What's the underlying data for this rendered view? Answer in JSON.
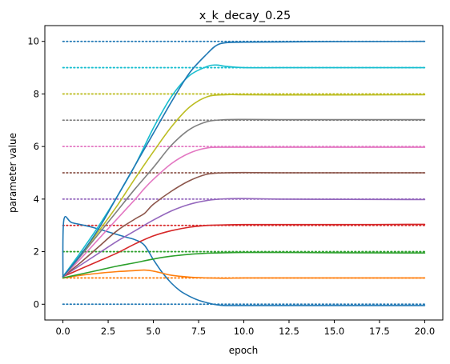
{
  "chart_data": {
    "type": "line",
    "title": "x_k_decay_0.25",
    "xlabel": "epoch",
    "ylabel": "parameter value",
    "xlim": [
      -1.0,
      21.0
    ],
    "ylim": [
      -0.6,
      10.6
    ],
    "xticks": [
      0.0,
      2.5,
      5.0,
      7.5,
      10.0,
      12.5,
      15.0,
      17.5,
      20.0
    ],
    "xtick_labels": [
      "0.0",
      "2.5",
      "5.0",
      "7.5",
      "10.0",
      "12.5",
      "15.0",
      "17.5",
      "20.0"
    ],
    "yticks": [
      0,
      2,
      4,
      6,
      8,
      10
    ],
    "ytick_labels": [
      "0",
      "2",
      "4",
      "6",
      "8",
      "10"
    ],
    "grid": false,
    "reference_lines": [
      {
        "y": 0,
        "color": "#1f77b4",
        "style": "dotted"
      },
      {
        "y": 1,
        "color": "#ff7f0e",
        "style": "dotted"
      },
      {
        "y": 2,
        "color": "#2ca02c",
        "style": "dotted"
      },
      {
        "y": 3,
        "color": "#d62728",
        "style": "dotted"
      },
      {
        "y": 4,
        "color": "#9467bd",
        "style": "dotted"
      },
      {
        "y": 5,
        "color": "#8c564b",
        "style": "dotted"
      },
      {
        "y": 6,
        "color": "#e377c2",
        "style": "dotted"
      },
      {
        "y": 7,
        "color": "#7f7f7f",
        "style": "dotted"
      },
      {
        "y": 8,
        "color": "#bcbd22",
        "style": "dotted"
      },
      {
        "y": 9,
        "color": "#17becf",
        "style": "dotted"
      },
      {
        "y": 10,
        "color": "#1f77b4",
        "style": "dotted"
      }
    ],
    "series": [
      {
        "color": "#1f77b4",
        "points": [
          [
            0,
            1.05
          ],
          [
            0.05,
            3.2
          ],
          [
            0.5,
            3.1
          ],
          [
            1.5,
            2.95
          ],
          [
            2.5,
            2.75
          ],
          [
            3.5,
            2.55
          ],
          [
            4,
            2.45
          ],
          [
            4.5,
            2.25
          ],
          [
            5,
            1.7
          ],
          [
            5.5,
            1.2
          ],
          [
            6,
            0.8
          ],
          [
            6.5,
            0.5
          ],
          [
            7,
            0.3
          ],
          [
            7.5,
            0.15
          ],
          [
            8,
            0.05
          ],
          [
            8.5,
            -0.02
          ],
          [
            9,
            -0.05
          ],
          [
            10,
            -0.05
          ],
          [
            12,
            -0.05
          ],
          [
            15,
            -0.05
          ],
          [
            20,
            -0.05
          ]
        ]
      },
      {
        "color": "#ff7f0e",
        "points": [
          [
            0,
            1.0
          ],
          [
            1,
            1.1
          ],
          [
            2,
            1.18
          ],
          [
            3,
            1.24
          ],
          [
            4,
            1.28
          ],
          [
            4.5,
            1.3
          ],
          [
            5,
            1.26
          ],
          [
            5.5,
            1.18
          ],
          [
            6,
            1.1
          ],
          [
            7,
            1.03
          ],
          [
            8,
            1.0
          ],
          [
            9,
            0.99
          ],
          [
            10,
            1.0
          ],
          [
            12,
            1.0
          ],
          [
            15,
            1.0
          ],
          [
            20,
            1.0
          ]
        ]
      },
      {
        "color": "#2ca02c",
        "points": [
          [
            0,
            1.0
          ],
          [
            1,
            1.15
          ],
          [
            2,
            1.3
          ],
          [
            3,
            1.45
          ],
          [
            4,
            1.58
          ],
          [
            5,
            1.72
          ],
          [
            6,
            1.83
          ],
          [
            7,
            1.9
          ],
          [
            8,
            1.94
          ],
          [
            9,
            1.96
          ],
          [
            10,
            1.97
          ],
          [
            12,
            1.97
          ],
          [
            15,
            1.96
          ],
          [
            20,
            1.95
          ]
        ]
      },
      {
        "color": "#d62728",
        "points": [
          [
            0,
            1.05
          ],
          [
            1,
            1.35
          ],
          [
            2,
            1.65
          ],
          [
            3,
            1.95
          ],
          [
            4,
            2.3
          ],
          [
            5,
            2.6
          ],
          [
            6,
            2.8
          ],
          [
            7,
            2.93
          ],
          [
            8,
            3.0
          ],
          [
            9,
            3.02
          ],
          [
            10,
            3.03
          ],
          [
            12,
            3.03
          ],
          [
            15,
            3.03
          ],
          [
            20,
            3.04
          ]
        ]
      },
      {
        "color": "#9467bd",
        "points": [
          [
            0,
            1.05
          ],
          [
            1,
            1.5
          ],
          [
            2,
            1.95
          ],
          [
            3,
            2.4
          ],
          [
            4,
            2.8
          ],
          [
            5,
            3.2
          ],
          [
            6,
            3.55
          ],
          [
            7,
            3.8
          ],
          [
            8,
            3.95
          ],
          [
            9,
            4.01
          ],
          [
            10,
            4.02
          ],
          [
            12,
            4.0
          ],
          [
            15,
            3.99
          ],
          [
            20,
            3.98
          ]
        ]
      },
      {
        "color": "#8c564b",
        "points": [
          [
            0,
            1.05
          ],
          [
            1,
            1.6
          ],
          [
            2,
            2.2
          ],
          [
            3,
            2.8
          ],
          [
            4,
            3.25
          ],
          [
            4.5,
            3.45
          ],
          [
            5,
            3.8
          ],
          [
            6,
            4.3
          ],
          [
            7,
            4.7
          ],
          [
            8,
            4.95
          ],
          [
            9,
            5.0
          ],
          [
            10,
            5.01
          ],
          [
            12,
            5.0
          ],
          [
            15,
            5.0
          ],
          [
            20,
            5.0
          ]
        ]
      },
      {
        "color": "#e377c2",
        "points": [
          [
            0,
            1.05
          ],
          [
            1,
            1.75
          ],
          [
            2,
            2.5
          ],
          [
            3,
            3.25
          ],
          [
            4,
            4.0
          ],
          [
            4.5,
            4.4
          ],
          [
            5,
            4.75
          ],
          [
            6,
            5.35
          ],
          [
            7,
            5.75
          ],
          [
            8,
            5.95
          ],
          [
            9,
            5.97
          ],
          [
            10,
            5.97
          ],
          [
            12,
            5.97
          ],
          [
            15,
            5.97
          ],
          [
            20,
            5.97
          ]
        ]
      },
      {
        "color": "#7f7f7f",
        "points": [
          [
            0,
            1.05
          ],
          [
            1,
            1.85
          ],
          [
            2,
            2.7
          ],
          [
            3,
            3.55
          ],
          [
            4,
            4.4
          ],
          [
            5,
            5.2
          ],
          [
            6,
            6.05
          ],
          [
            7,
            6.65
          ],
          [
            8,
            6.95
          ],
          [
            9,
            7.02
          ],
          [
            10,
            7.03
          ],
          [
            12,
            7.02
          ],
          [
            15,
            7.02
          ],
          [
            20,
            7.02
          ]
        ]
      },
      {
        "color": "#bcbd22",
        "points": [
          [
            0,
            1.05
          ],
          [
            1,
            1.9
          ],
          [
            2,
            2.8
          ],
          [
            3,
            3.75
          ],
          [
            4,
            4.8
          ],
          [
            5,
            5.8
          ],
          [
            6,
            6.75
          ],
          [
            7,
            7.5
          ],
          [
            8,
            7.9
          ],
          [
            9,
            7.97
          ],
          [
            10,
            7.97
          ],
          [
            12,
            7.96
          ],
          [
            15,
            7.96
          ],
          [
            20,
            7.97
          ]
        ]
      },
      {
        "color": "#17becf",
        "points": [
          [
            0,
            1.05
          ],
          [
            1,
            2.0
          ],
          [
            2,
            3.0
          ],
          [
            3,
            4.1
          ],
          [
            4,
            5.3
          ],
          [
            5,
            6.7
          ],
          [
            6,
            7.9
          ],
          [
            7,
            8.7
          ],
          [
            8,
            9.05
          ],
          [
            8.5,
            9.1
          ],
          [
            9,
            9.05
          ],
          [
            10,
            9.0
          ],
          [
            12,
            9.0
          ],
          [
            15,
            9.0
          ],
          [
            20,
            9.0
          ]
        ]
      },
      {
        "color": "#1f77b4",
        "points": [
          [
            0,
            1.05
          ],
          [
            1,
            1.9
          ],
          [
            2,
            2.9
          ],
          [
            3,
            4.1
          ],
          [
            4,
            5.3
          ],
          [
            5,
            6.5
          ],
          [
            6,
            7.7
          ],
          [
            7,
            8.8
          ],
          [
            8,
            9.55
          ],
          [
            8.5,
            9.85
          ],
          [
            9,
            9.95
          ],
          [
            10,
            9.97
          ],
          [
            12,
            9.98
          ],
          [
            15,
            9.99
          ],
          [
            20,
            10.0
          ]
        ]
      }
    ]
  }
}
